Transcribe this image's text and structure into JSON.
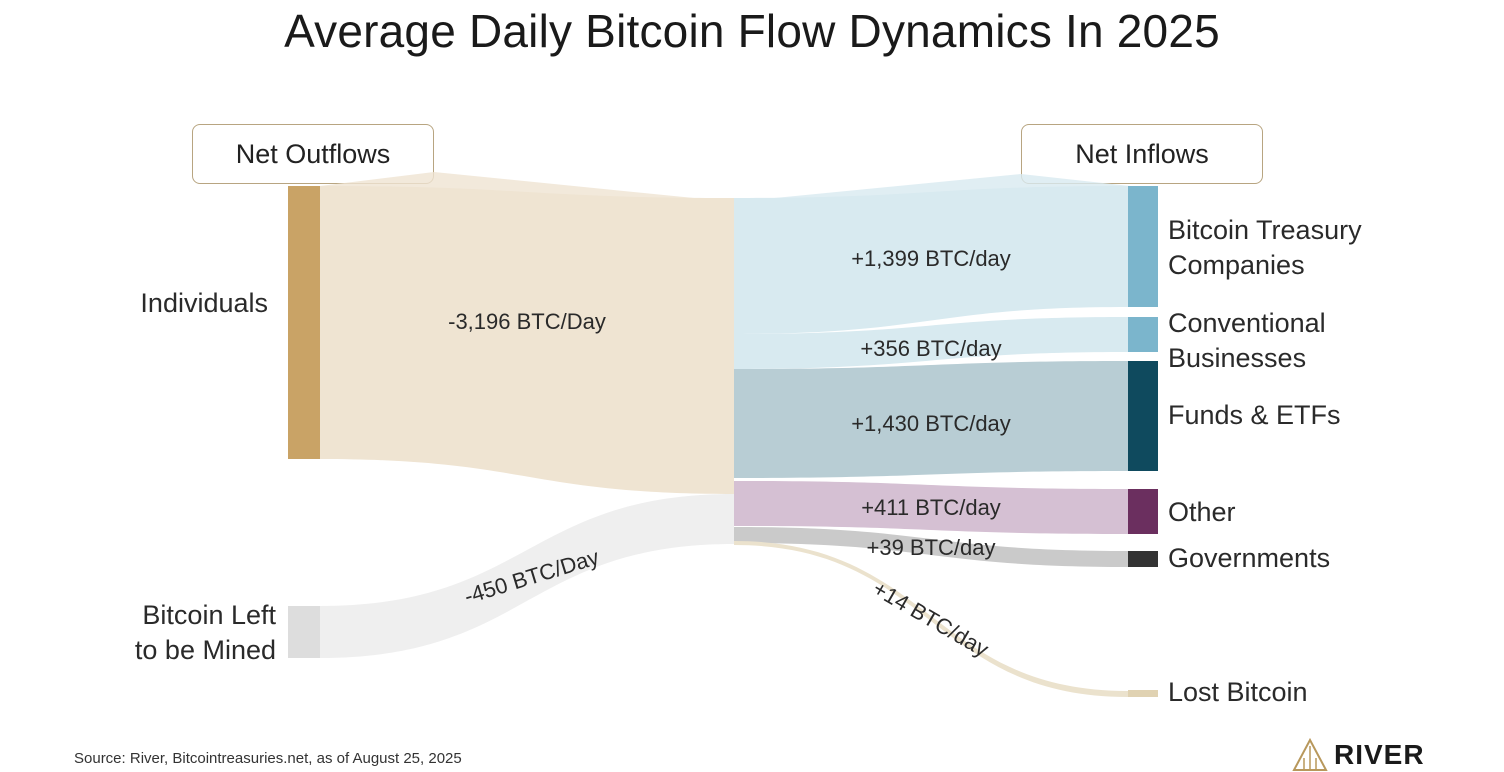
{
  "title": "Average Daily Bitcoin Flow Dynamics In 2025",
  "headers": {
    "outflows": "Net Outflows",
    "inflows": "Net Inflows"
  },
  "footer": "Source: River, Bitcointreasuries.net, as of August 25, 2025",
  "logo": "RIVER",
  "colors": {
    "individuals": "#c9a366",
    "individuals_flow": "#efe4d2",
    "mined": "#dddddd",
    "mined_flow": "#efefef",
    "treasury": "#7bb5cc",
    "treasury_flow": "#d8eaf0",
    "business": "#7bb5cc",
    "business_flow": "#d8eaf0",
    "funds": "#0f4a5e",
    "funds_flow": "#b8cdd4",
    "other": "#6b2f5f",
    "other_flow": "#d5c0d3",
    "governments": "#333333",
    "governments_flow": "#b8b8b8",
    "lost": "#e0d2b2",
    "lost_flow": "#ebe2cd"
  },
  "chart_data": {
    "type": "sankey",
    "title": "Average Daily Bitcoin Flow Dynamics In 2025",
    "units": "BTC/day",
    "sources": [
      {
        "id": "individuals",
        "label": "Individuals",
        "value": -3196,
        "value_label": "-3,196 BTC/Day"
      },
      {
        "id": "mined",
        "label_lines": [
          "Bitcoin Left",
          "to be Mined"
        ],
        "value": -450,
        "value_label": "-450 BTC/Day"
      }
    ],
    "targets": [
      {
        "id": "treasury",
        "label_lines": [
          "Bitcoin Treasury",
          "Companies"
        ],
        "value": 1399,
        "value_label": "+1,399 BTC/day"
      },
      {
        "id": "business",
        "label_lines": [
          "Conventional",
          "Businesses"
        ],
        "value": 356,
        "value_label": "+356 BTC/day"
      },
      {
        "id": "funds",
        "label_lines": [
          "Funds & ETFs"
        ],
        "value": 1430,
        "value_label": "+1,430 BTC/day"
      },
      {
        "id": "other",
        "label_lines": [
          "Other"
        ],
        "value": 411,
        "value_label": "+411 BTC/day"
      },
      {
        "id": "governments",
        "label_lines": [
          "Governments"
        ],
        "value": 39,
        "value_label": "+39 BTC/day"
      },
      {
        "id": "lost",
        "label_lines": [
          "Lost Bitcoin"
        ],
        "value": 14,
        "value_label": "+14 BTC/day"
      }
    ]
  }
}
